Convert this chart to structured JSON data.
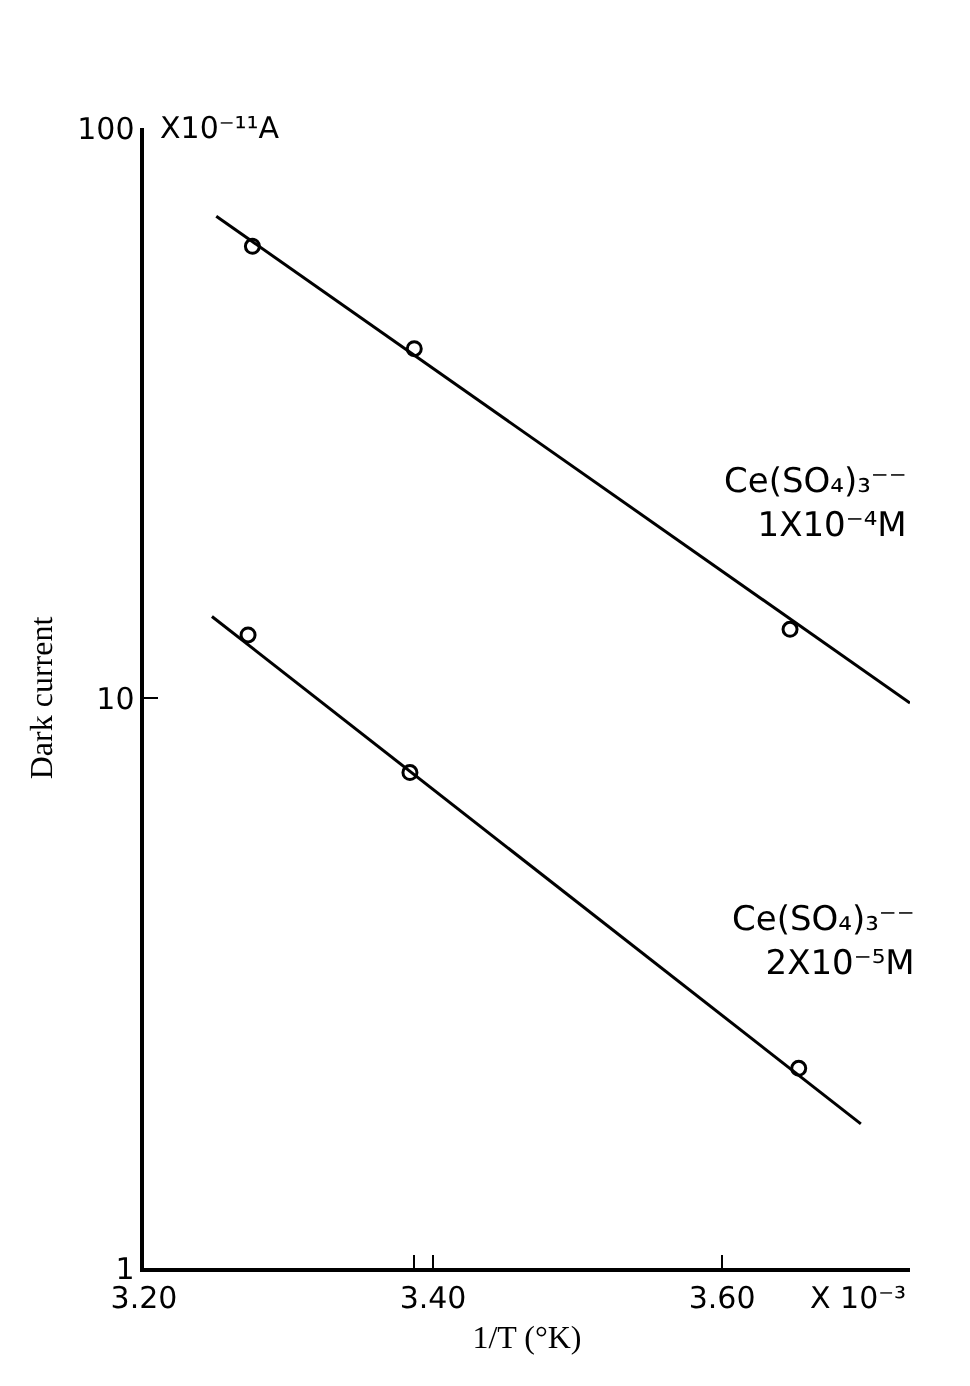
{
  "chart_data": {
    "type": "scatter",
    "xlabel": "1/T (°K)",
    "ylabel": "Dark current",
    "annotations": [
      "X10⁻¹¹A",
      "X 10⁻³"
    ],
    "log": "y",
    "xlim": [
      3.2,
      3.73
    ],
    "ylim": [
      1,
      100
    ],
    "xticks": [
      {
        "value": 3.2,
        "label": "3.20"
      },
      {
        "value": 3.387,
        "label": null
      },
      {
        "value": 3.4,
        "label": "3.40"
      },
      {
        "value": 3.6,
        "label": "3.60"
      }
    ],
    "yticks": [
      1,
      10,
      100
    ],
    "grid": false,
    "legend": false,
    "marker": "circle",
    "series": [
      {
        "name": "Ce(SO₄)₃⁻⁻ 1X10⁻⁴M",
        "color": "#000000",
        "x": [
          3.275,
          3.387,
          3.647
        ],
        "values": [
          62,
          41,
          13.2
        ]
      },
      {
        "type": "line",
        "marker": "none",
        "color": "#000000",
        "x": [
          3.25,
          3.73
        ],
        "values": [
          70,
          9.8
        ]
      },
      {
        "name": "Ce(SO₄)₃⁻⁻ 2X10⁻⁵M",
        "color": "#000000",
        "x": [
          3.272,
          3.384,
          3.653
        ],
        "values": [
          12.9,
          7.4,
          2.24
        ]
      },
      {
        "type": "line",
        "marker": "none",
        "color": "#000000",
        "x": [
          3.247,
          3.696
        ],
        "values": [
          13.9,
          1.79
        ]
      }
    ]
  }
}
